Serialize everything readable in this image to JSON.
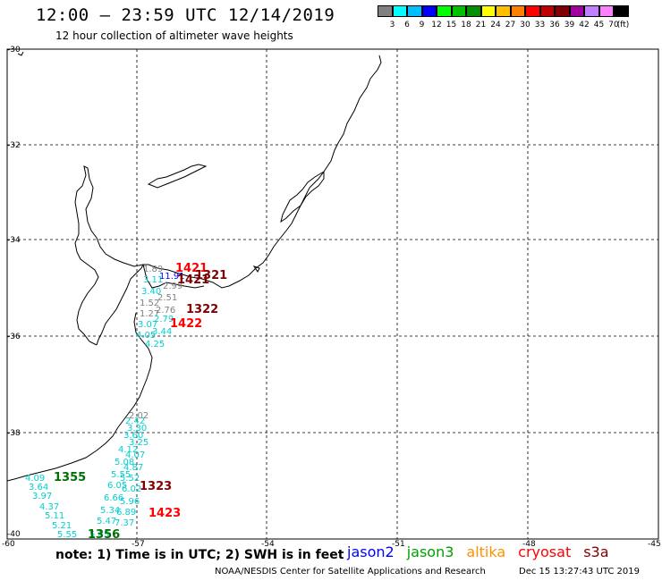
{
  "header": {
    "title": "12:00 – 23:59 UTC 12/14/2019",
    "subtitle": "12 hour collection of altimeter wave heights"
  },
  "colorbar": {
    "colors": [
      "#808080",
      "#00ffff",
      "#00bfff",
      "#0000ff",
      "#00ff00",
      "#00c000",
      "#009000",
      "#ffff00",
      "#ffc000",
      "#ff8000",
      "#ff0000",
      "#c00000",
      "#800000",
      "#a000a0",
      "#c080ff",
      "#ff80ff",
      "#000000"
    ],
    "labels": [
      "3",
      "6",
      "9",
      "12",
      "15",
      "18",
      "21",
      "24",
      "27",
      "30",
      "33",
      "36",
      "39",
      "42",
      "45",
      "70",
      "(ft)"
    ]
  },
  "axes": {
    "lat_labels": [
      "-30",
      "-32",
      "-34",
      "-36",
      "-38",
      "-40"
    ],
    "lon_labels": [
      "-60",
      "-57",
      "-54",
      "-51",
      "-48",
      "-45"
    ]
  },
  "observations": [
    {
      "text": "1.89",
      "color": "#808080"
    },
    {
      "text": "3.11",
      "color": "#00d0d0"
    },
    {
      "text": "11.91",
      "color": "#0000ff"
    },
    {
      "text": "2.99",
      "color": "#808080"
    },
    {
      "text": "3.40",
      "color": "#00d0d0"
    },
    {
      "text": "2.51",
      "color": "#808080"
    },
    {
      "text": "1.52",
      "color": "#808080"
    },
    {
      "text": "2.76",
      "color": "#808080"
    },
    {
      "text": "1.27",
      "color": "#808080"
    },
    {
      "text": "2.79",
      "color": "#00d0d0"
    },
    {
      "text": "3.07",
      "color": "#00d0d0"
    },
    {
      "text": "3.44",
      "color": "#00d0d0"
    },
    {
      "text": "4.05",
      "color": "#00d0d0"
    },
    {
      "text": "4.25",
      "color": "#00d0d0"
    },
    {
      "text": "2.02",
      "color": "#808080"
    },
    {
      "text": "2.42",
      "color": "#00d0d0"
    },
    {
      "text": "3.30",
      "color": "#00d0d0"
    },
    {
      "text": "3.60",
      "color": "#00d0d0"
    },
    {
      "text": "3.25",
      "color": "#00d0d0"
    },
    {
      "text": "4.12",
      "color": "#00d0d0"
    },
    {
      "text": "4.07",
      "color": "#00d0d0"
    },
    {
      "text": "5.08",
      "color": "#00d0d0"
    },
    {
      "text": "4.87",
      "color": "#00d0d0"
    },
    {
      "text": "5.55",
      "color": "#00d0d0"
    },
    {
      "text": "5.52",
      "color": "#00d0d0"
    },
    {
      "text": "6.05",
      "color": "#00d0d0"
    },
    {
      "text": "6.02",
      "color": "#00d0d0"
    },
    {
      "text": "6.66",
      "color": "#00d0d0"
    },
    {
      "text": "5.96",
      "color": "#00d0d0"
    },
    {
      "text": "5.34",
      "color": "#00d0d0"
    },
    {
      "text": "6.89",
      "color": "#00d0d0"
    },
    {
      "text": "5.47",
      "color": "#00d0d0"
    },
    {
      "text": "7.37",
      "color": "#00d0d0"
    },
    {
      "text": "4.09",
      "color": "#00d0d0"
    },
    {
      "text": "3.64",
      "color": "#00d0d0"
    },
    {
      "text": "3.97",
      "color": "#00d0d0"
    },
    {
      "text": "4.37",
      "color": "#00d0d0"
    },
    {
      "text": "5.11",
      "color": "#00d0d0"
    },
    {
      "text": "5.21",
      "color": "#00d0d0"
    },
    {
      "text": "5.55",
      "color": "#00d0d0"
    },
    {
      "text": "5.85",
      "color": "#00d0d0"
    }
  ],
  "time_labels": [
    {
      "text": "1421",
      "color": "#ff0000"
    },
    {
      "text": "1321",
      "color": "#800000"
    },
    {
      "text": "1421",
      "color": "#800000"
    },
    {
      "text": "1322",
      "color": "#800000"
    },
    {
      "text": "1422",
      "color": "#ff0000"
    },
    {
      "text": "1355",
      "color": "#007000"
    },
    {
      "text": "1323",
      "color": "#800000"
    },
    {
      "text": "1423",
      "color": "#ff0000"
    },
    {
      "text": "1356",
      "color": "#007000"
    }
  ],
  "note": "note:  1) Time is in UTC;  2) SWH is in feet",
  "legend": [
    {
      "name": "jason2",
      "color": "#0000ff"
    },
    {
      "name": "jason3",
      "color": "#00a000"
    },
    {
      "name": "altika",
      "color": "#ff9000"
    },
    {
      "name": "cryosat",
      "color": "#ff0000"
    },
    {
      "name": "s3a",
      "color": "#800000"
    }
  ],
  "footer": {
    "left": "NOAA/NESDIS Center for Satellite Applications and Research",
    "right": "Dec 15 13:27:43 UTC 2019"
  }
}
